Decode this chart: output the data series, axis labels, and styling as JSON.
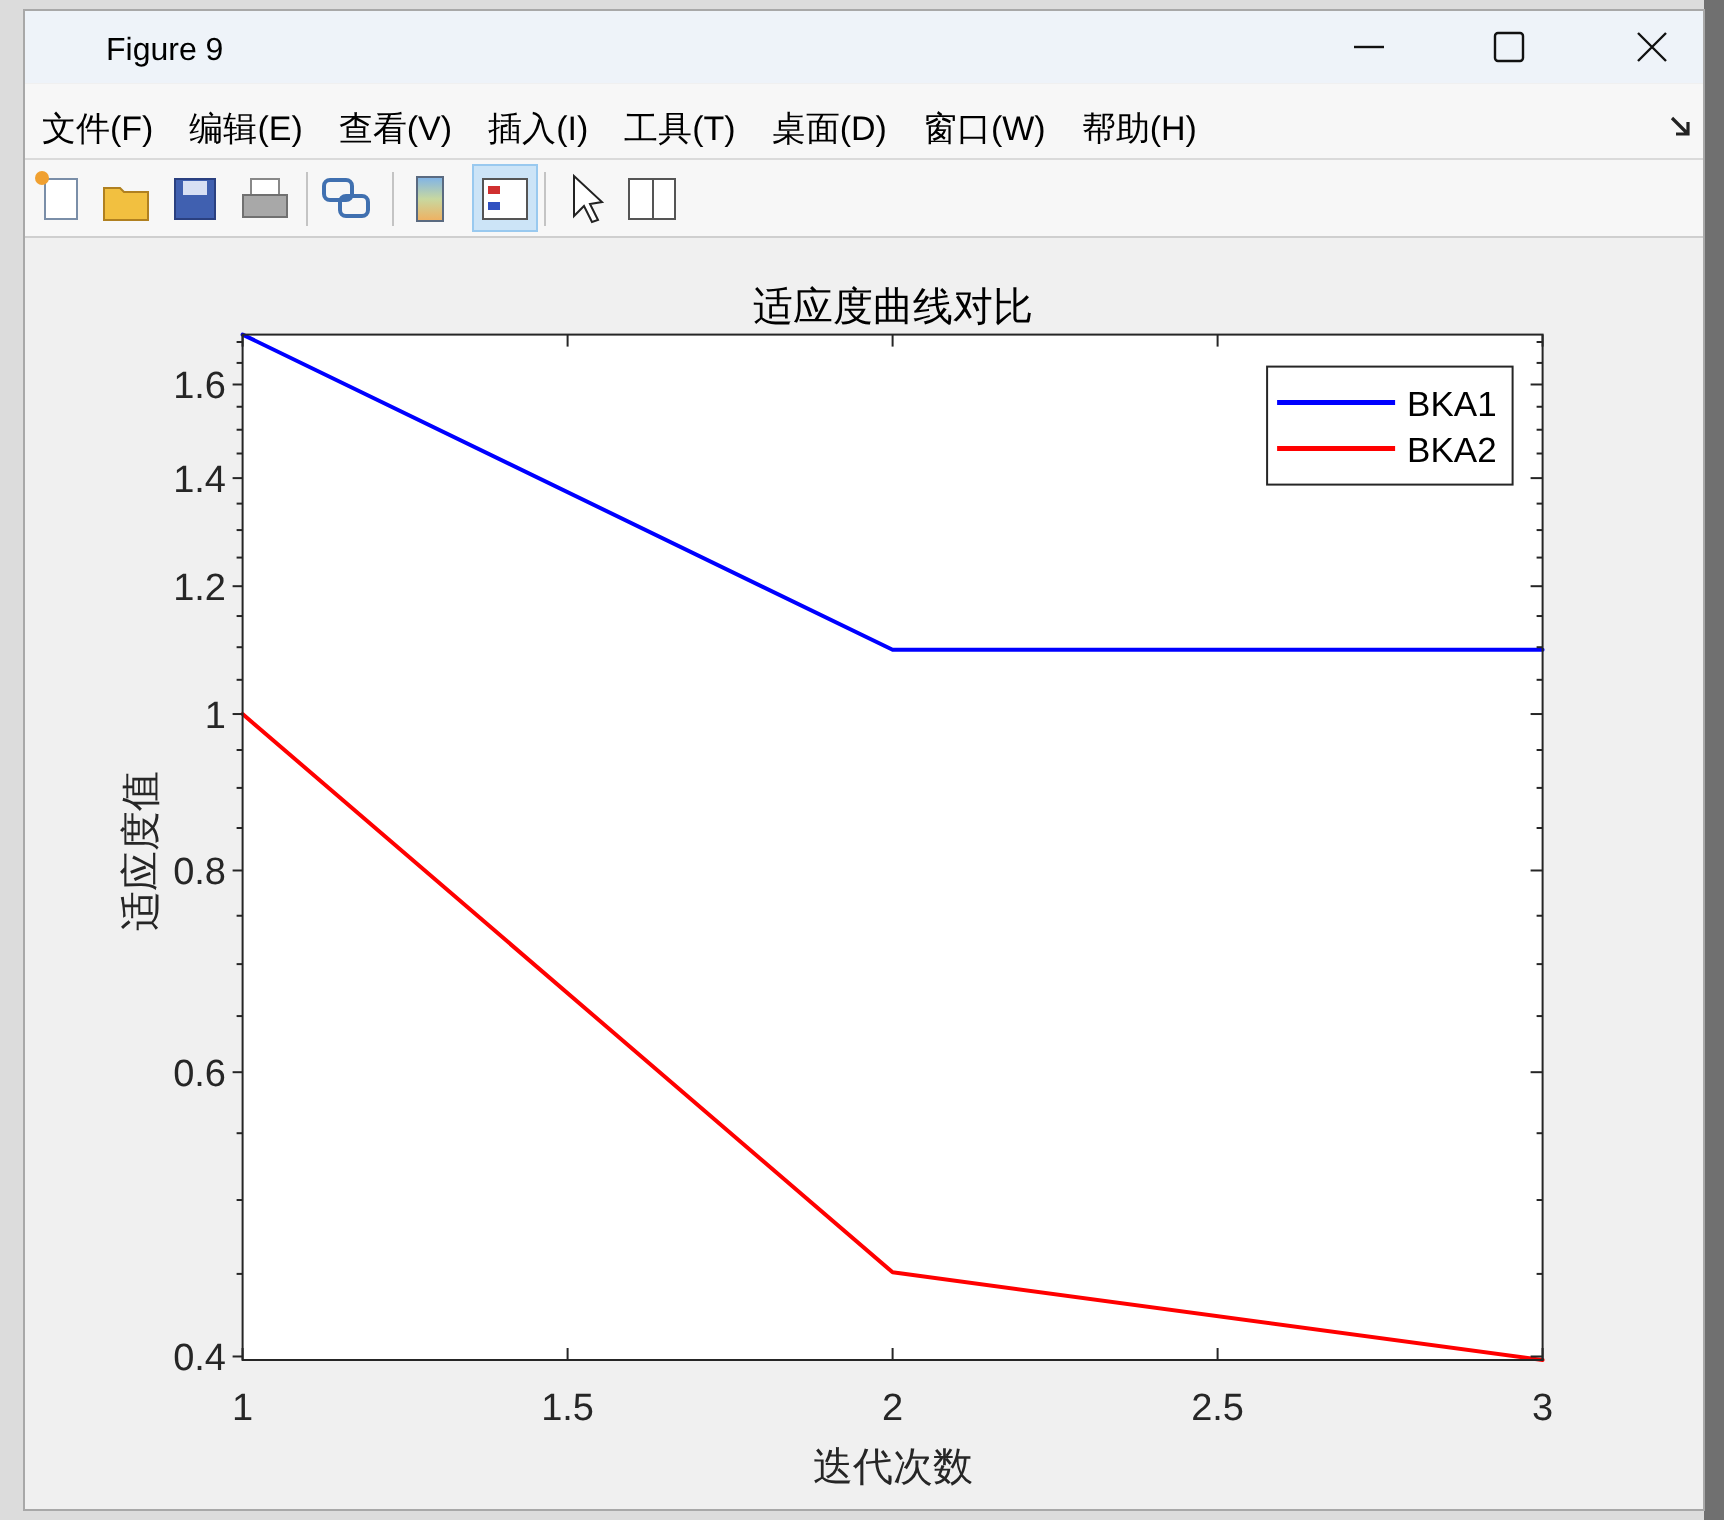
{
  "chart_data": {
    "type": "line",
    "title": "适应度曲线对比",
    "xlabel": "迭代次数",
    "ylabel": "适应度值",
    "x": [
      1,
      2,
      3
    ],
    "series": [
      {
        "name": "BKA1",
        "color": "#0000ff",
        "values": [
          1.718,
          1.096,
          1.096
        ]
      },
      {
        "name": "BKA2",
        "color": "#ff0000",
        "values": [
          1.0,
          0.451,
          0.398
        ]
      }
    ],
    "xlim": [
      1,
      3
    ],
    "xticks": [
      1,
      1.5,
      2,
      2.5,
      3
    ],
    "ylim": [
      0.398,
      1.718
    ],
    "yticks": [
      0.4,
      {
        "value": 0.45,
        "label": null
      },
      {
        "value": 0.5,
        "label": null
      },
      {
        "value": 0.55,
        "label": null
      },
      0.6,
      {
        "value": 0.65,
        "label": null
      },
      {
        "value": 0.7,
        "label": null
      },
      {
        "value": 0.75,
        "label": null
      },
      0.8,
      {
        "value": 0.85,
        "label": null
      },
      {
        "value": 0.9,
        "label": null
      },
      {
        "value": 0.95,
        "label": null
      },
      1,
      {
        "value": 1.05,
        "label": null
      },
      {
        "value": 1.1,
        "label": null
      },
      {
        "value": 1.15,
        "label": null
      },
      1.2,
      {
        "value": 1.25,
        "label": null
      },
      {
        "value": 1.3,
        "label": null
      },
      {
        "value": 1.35,
        "label": null
      },
      1.4,
      {
        "value": 1.45,
        "label": null
      },
      {
        "value": 1.5,
        "label": null
      },
      {
        "value": 1.55,
        "label": null
      },
      1.6,
      {
        "value": 1.65,
        "label": null
      },
      {
        "value": 1.7,
        "label": null
      }
    ],
    "log": "y",
    "legend": "top right",
    "annotations": [
      "Figure 9",
      "文件(F)",
      "编辑(E)",
      "查看(V)",
      "插入(I)",
      "工具(T)",
      "桌面(D)",
      "窗口(W)",
      "帮助(H)"
    ]
  }
}
